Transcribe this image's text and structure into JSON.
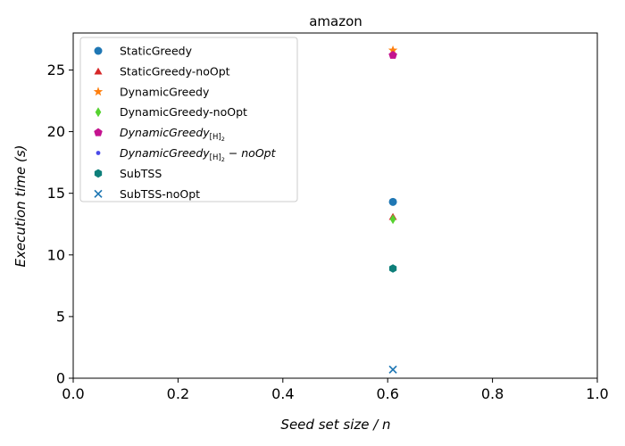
{
  "chart_data": {
    "type": "scatter",
    "title": "amazon",
    "xlabel": "Seed set size / n",
    "ylabel": "Execution time (s)",
    "xlim": [
      0.0,
      1.0
    ],
    "ylim": [
      0,
      28
    ],
    "x_ticks": [
      0.0,
      0.2,
      0.4,
      0.6,
      0.8,
      1.0
    ],
    "x_tick_labels": [
      "0.0",
      "0.2",
      "0.4",
      "0.6",
      "0.8",
      "1.0"
    ],
    "y_ticks": [
      0,
      5,
      10,
      15,
      20,
      25
    ],
    "y_tick_labels": [
      "0",
      "5",
      "10",
      "15",
      "20",
      "25"
    ],
    "grid": false,
    "legend_position": "top-left",
    "series": [
      {
        "name": "StaticGreedy",
        "marker": "circle",
        "color": "#1f77b4",
        "x": [
          0.61
        ],
        "y": [
          14.3
        ]
      },
      {
        "name": "StaticGreedy-noOpt",
        "marker": "triangle",
        "color": "#d62728",
        "x": [
          0.61
        ],
        "y": [
          13.1
        ]
      },
      {
        "name": "DynamicGreedy",
        "marker": "star",
        "color": "#ff7f0e",
        "x": [
          0.61
        ],
        "y": [
          26.6
        ]
      },
      {
        "name": "DynamicGreedy-noOpt",
        "marker": "thin-diamond",
        "color": "#55d22f",
        "x": [
          0.61
        ],
        "y": [
          12.9
        ]
      },
      {
        "name": "DynamicGreedy_[H]_2",
        "marker": "pentagon",
        "color": "#c4138f",
        "x": [
          0.61
        ],
        "y": [
          26.2
        ]
      },
      {
        "name": "DynamicGreedy_[H]_2 − noOpt",
        "marker": "point",
        "color": "#4a4ae8",
        "x": [],
        "y": []
      },
      {
        "name": "SubTSS",
        "marker": "hexagon",
        "color": "#0e7f7a",
        "x": [
          0.61
        ],
        "y": [
          8.9
        ]
      },
      {
        "name": "SubTSS-noOpt",
        "marker": "x",
        "color": "#1f77b4",
        "x": [
          0.61
        ],
        "y": [
          0.7
        ]
      }
    ],
    "legend": {
      "entries": [
        {
          "text": "StaticGreedy"
        },
        {
          "text": "StaticGreedy-noOpt"
        },
        {
          "text": "DynamicGreedy"
        },
        {
          "text": "DynamicGreedy-noOpt"
        },
        {
          "base": "DynamicGreedy",
          "sub": "[H]",
          "subsub": "2"
        },
        {
          "base": "DynamicGreedy",
          "sub": "[H]",
          "subsub": "2",
          "suffix": " − noOpt"
        },
        {
          "text": "SubTSS"
        },
        {
          "text": "SubTSS-noOpt"
        }
      ]
    }
  }
}
